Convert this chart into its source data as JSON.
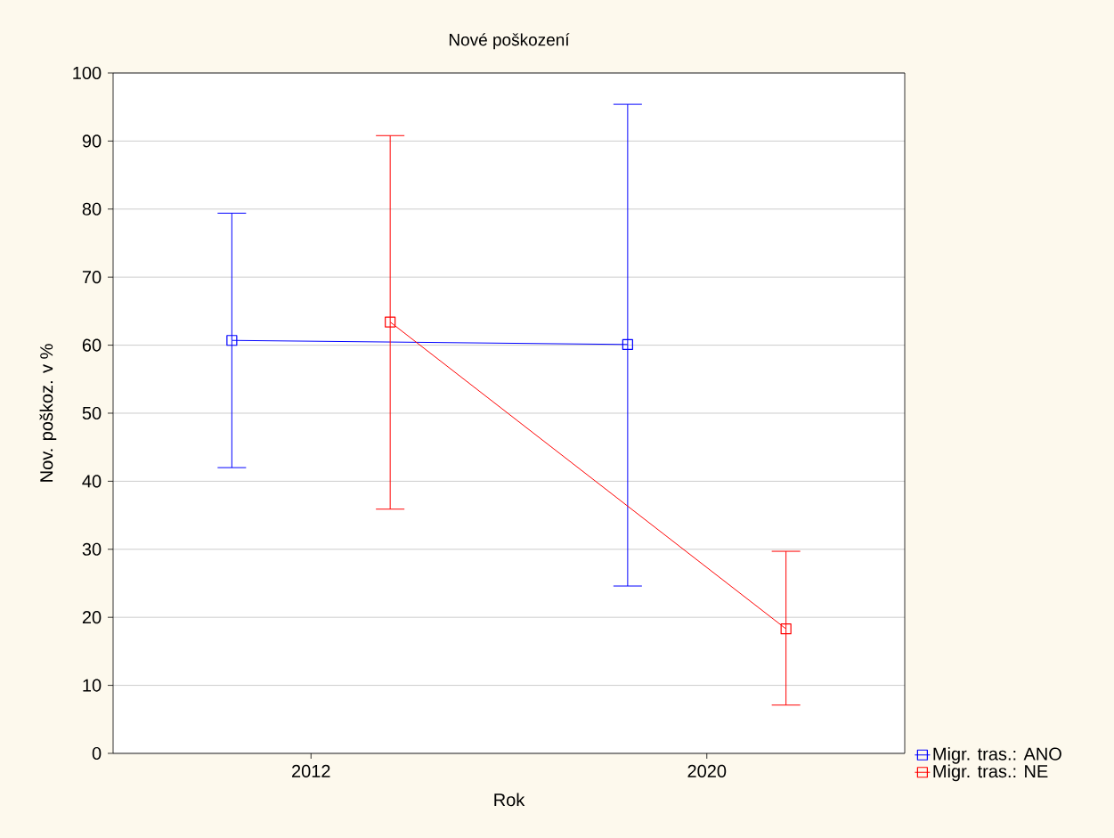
{
  "chart_data": {
    "type": "line",
    "title": "Nové poškození",
    "xlabel": "Rok",
    "ylabel": "Nov. poškoz. v %",
    "categories": [
      "2012",
      "2020"
    ],
    "series": [
      {
        "name": "Migr. tras.: ANO",
        "color": "#0000ff",
        "values": [
          60.7,
          60.1
        ],
        "errors": [
          [
            42.0,
            79.4
          ],
          [
            24.6,
            95.4
          ]
        ]
      },
      {
        "name": "Migr. tras.: NE",
        "color": "#ff0000",
        "values": [
          63.4,
          18.3
        ],
        "errors": [
          [
            35.9,
            90.8
          ],
          [
            7.1,
            29.7
          ]
        ]
      }
    ],
    "ylim": [
      0,
      100
    ],
    "yticks": [
      0,
      10,
      20,
      30,
      40,
      50,
      60,
      70,
      80,
      90,
      100
    ],
    "grid": "y",
    "legend": "bottom right",
    "marker": "square",
    "line_style": "solid"
  }
}
